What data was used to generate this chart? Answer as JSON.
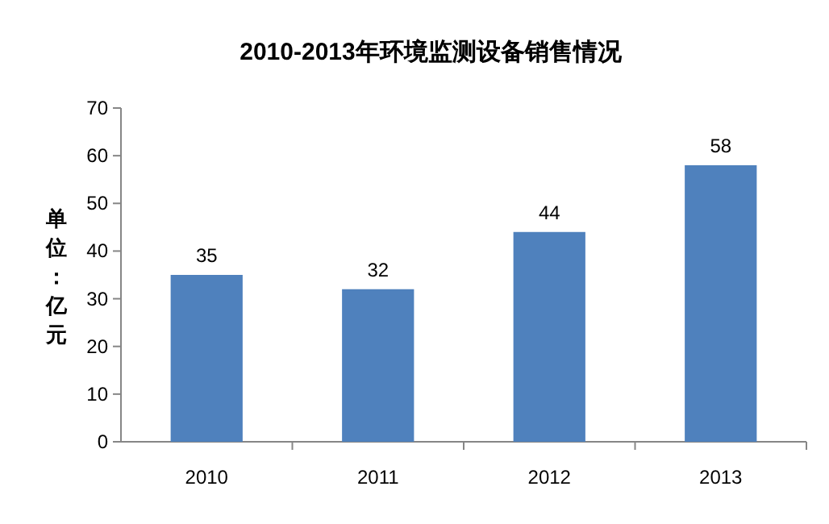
{
  "chart_data": {
    "type": "bar",
    "title": "2010-2013年环境监测设备销售情况",
    "ylabel": "单位：亿元",
    "categories": [
      "2010",
      "2011",
      "2012",
      "2013"
    ],
    "values": [
      35,
      32,
      44,
      58
    ],
    "color": "#4f81bd",
    "ylim": [
      0,
      70
    ],
    "yticks": [
      0,
      10,
      20,
      30,
      40,
      50,
      60,
      70
    ],
    "data_labels": true,
    "grid": false
  }
}
